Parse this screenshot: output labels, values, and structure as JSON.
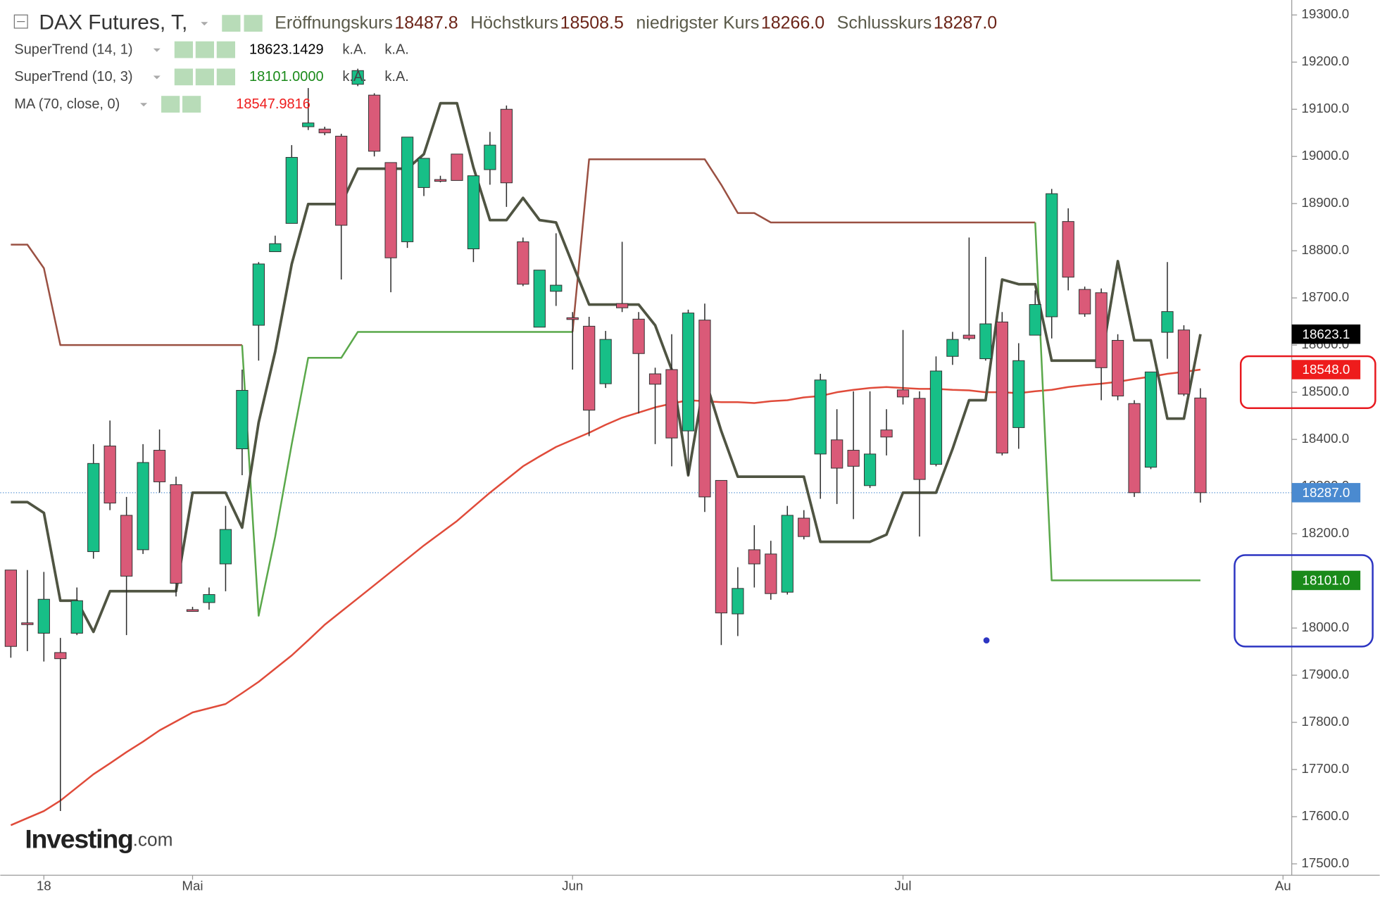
{
  "chart_data": {
    "type": "candlestick",
    "title": "DAX Futures, T,",
    "categories": [
      null,
      null,
      "18",
      null,
      null,
      null,
      null,
      null,
      null,
      null,
      null,
      "Mai",
      null,
      null,
      null,
      null,
      null,
      null,
      null,
      null,
      null,
      null,
      null,
      null,
      null,
      null,
      null,
      null,
      null,
      null,
      null,
      null,
      null,
      null,
      "Jun",
      null,
      null,
      null,
      null,
      null,
      null,
      null,
      null,
      null,
      null,
      null,
      null,
      null,
      null,
      null,
      null,
      null,
      null,
      null,
      "Jul",
      null,
      null,
      null,
      null,
      null,
      null,
      null,
      null,
      null,
      null,
      null,
      null,
      null,
      null,
      null,
      null,
      null,
      null,
      null,
      null,
      null,
      null,
      "Au"
    ],
    "open": [
      18123,
      18011,
      17989,
      17948,
      17989,
      18162,
      18386,
      18239,
      18166,
      18377,
      18304,
      18039,
      18054,
      18136,
      18380,
      18642,
      18798,
      18858,
      19063,
      19058,
      19043,
      19153,
      19130,
      18987,
      18819,
      18934,
      18951,
      19005,
      18804,
      18972,
      19100,
      18819,
      18638,
      18714,
      18658,
      18640,
      18518,
      18688,
      18655,
      18539,
      18548,
      18418,
      18653,
      18313,
      18030,
      18166,
      18157,
      18076,
      18233,
      18369,
      18399,
      18377,
      18302,
      18420,
      18505,
      18487,
      18347,
      18576,
      18621,
      18571,
      18649,
      18425,
      18621,
      18660,
      18862,
      18718,
      18711,
      18610,
      18476,
      18341,
      18627,
      18632,
      18487.8,
      null,
      null,
      null,
      null,
      null
    ],
    "high": [
      18123,
      18123,
      18119,
      17979,
      18086,
      18390,
      18440,
      18278,
      18390,
      18421,
      18321,
      18045,
      18086,
      18259,
      18548,
      18776,
      18832,
      19024,
      19145,
      19063,
      19048,
      19186,
      19134,
      18987,
      19041,
      18996,
      18959,
      19005,
      18959,
      19052,
      19108,
      18828,
      18759,
      18837,
      18670,
      18660,
      18630,
      18819,
      18670,
      18552,
      18623,
      18675,
      18688,
      18313,
      18129,
      18218,
      18185,
      18259,
      18250,
      18539,
      18464,
      18502,
      18502,
      18464,
      18632,
      18502,
      18576,
      18628,
      18828,
      18787,
      18670,
      18604,
      18716,
      18931,
      18890,
      18724,
      18720,
      18623,
      18483,
      18543,
      18776,
      18642,
      18508.5,
      null,
      null,
      null,
      null,
      null
    ],
    "low": [
      17937,
      17951,
      17929,
      17612,
      17985,
      18147,
      18250,
      17985,
      18157,
      18287,
      18067,
      18035,
      18039,
      18078,
      18324,
      18567,
      18798,
      18858,
      19056,
      19045,
      18739,
      19149,
      19000,
      18712,
      18806,
      18916,
      18945,
      18949,
      18776,
      18940,
      18893,
      18725,
      18638,
      18683,
      18548,
      18407,
      18509,
      18670,
      18455,
      18390,
      18343,
      18324,
      18246,
      17964,
      17983,
      18086,
      18060,
      18071,
      18188,
      18274,
      18263,
      18231,
      18297,
      18366,
      18474,
      18194,
      18343,
      18558,
      18610,
      18567,
      18366,
      18380,
      18621,
      18614,
      18716,
      18660,
      18483,
      18483,
      18278,
      18337,
      18571,
      18492,
      18266.0,
      null,
      null,
      null,
      null,
      null
    ],
    "close": [
      17961,
      18011,
      18061,
      17935,
      18058,
      18349,
      18265,
      18110,
      18351,
      18310,
      18095,
      18039,
      18071,
      18209,
      18504,
      18772,
      18815,
      18998,
      19071,
      19050,
      18854,
      19182,
      19011,
      18785,
      19041,
      18996,
      18951,
      18949,
      18959,
      19024,
      18944,
      18729,
      18759,
      18727,
      18658,
      18462,
      18612,
      18679,
      18582,
      18517,
      18403,
      18668,
      18278,
      18032,
      18084,
      18136,
      18073,
      18239,
      18194,
      18526,
      18339,
      18343,
      18369,
      18405,
      18490,
      18315,
      18545,
      18612,
      18614,
      18645,
      18371,
      18567,
      18686,
      18921,
      18744,
      18666,
      18552,
      18492,
      18287,
      18543,
      18671,
      18496,
      18287.0,
      null,
      null,
      null,
      null,
      null
    ],
    "up_color": "#17bf87",
    "down_color": "#da5a78",
    "summary": {
      "labels": [
        "Eröffnungskurs",
        "Höchstkurs",
        "niedrigster Kurs",
        "Schlusskurs"
      ],
      "values": [
        18487.8,
        18508.5,
        18266.0,
        18287.0
      ],
      "value_labels": [
        "18487.8",
        "18508.5",
        "18266.0",
        "18287.0"
      ],
      "close_color": "#4a8ad0"
    },
    "series": [
      {
        "name": "SuperTrend (14, 1)",
        "color": "#4f5442",
        "badge_color": "#000000",
        "legend_value_label": "18623.1429",
        "badge_label": "18623.1",
        "notes": [
          "k.A.",
          "k.A."
        ],
        "values": [
          18267,
          18267,
          18244,
          18058,
          18058,
          17992,
          18078,
          18078,
          18078,
          18078,
          18078,
          18287,
          18287,
          18287,
          18213,
          18436,
          18586,
          18772,
          18899,
          18899,
          18899,
          18974,
          18974,
          18974,
          18974,
          19005,
          19113,
          19113,
          18977,
          18865,
          18865,
          18912,
          18865,
          18860,
          18772,
          18686,
          18686,
          18686,
          18686,
          18642,
          18548,
          18324,
          18530,
          18418,
          18321,
          18321,
          18321,
          18321,
          18321,
          18183,
          18183,
          18183,
          18183,
          18198,
          18287,
          18287,
          18287,
          18380,
          18483,
          18483,
          18739,
          18729,
          18729,
          18567,
          18567,
          18567,
          18567,
          18778,
          18610,
          18610,
          18444,
          18444,
          18623.1429,
          null,
          null,
          null,
          null,
          null
        ]
      },
      {
        "name": "SuperTrend (10, 3)",
        "color": "#1a8a1a",
        "badge_color": "#1a8a1a",
        "legend_value_label": "18101.0000",
        "badge_label": "18101.0",
        "notes": [
          "k.A.",
          "k.A."
        ],
        "values": [
          18813,
          18813,
          18763,
          18600,
          18600,
          18600,
          18600,
          18600,
          18600,
          18600,
          18600,
          18600,
          18600,
          18600,
          18600,
          18026,
          18194,
          18390,
          18573,
          18573,
          18573,
          18628,
          18628,
          18628,
          18628,
          18628,
          18628,
          18628,
          18628,
          18628,
          18628,
          18628,
          18628,
          18628,
          18628,
          18994,
          18994,
          18994,
          18994,
          18994,
          18994,
          18994,
          18994,
          18940,
          18880,
          18880,
          18860,
          18860,
          18860,
          18860,
          18860,
          18860,
          18860,
          18860,
          18860,
          18860,
          18860,
          18860,
          18860,
          18860,
          18860,
          18860,
          18860,
          18101,
          18101,
          18101,
          18101,
          18101,
          18101,
          18101,
          18101,
          18101,
          18101,
          null,
          null,
          null,
          null,
          null
        ],
        "colors": [
          "#9a5042",
          "#9a5042",
          "#9a5042",
          "#9a5042",
          "#9a5042",
          "#9a5042",
          "#9a5042",
          "#9a5042",
          "#9a5042",
          "#9a5042",
          "#9a5042",
          "#9a5042",
          "#9a5042",
          "#9a5042",
          "#9a5042",
          "#5aa84a",
          "#5aa84a",
          "#5aa84a",
          "#5aa84a",
          "#5aa84a",
          "#5aa84a",
          "#5aa84a",
          "#5aa84a",
          "#5aa84a",
          "#5aa84a",
          "#5aa84a",
          "#5aa84a",
          "#5aa84a",
          "#5aa84a",
          "#5aa84a",
          "#5aa84a",
          "#5aa84a",
          "#5aa84a",
          "#5aa84a",
          "#5aa84a",
          "#9a5042",
          "#9a5042",
          "#9a5042",
          "#9a5042",
          "#9a5042",
          "#9a5042",
          "#9a5042",
          "#9a5042",
          "#9a5042",
          "#9a5042",
          "#9a5042",
          "#9a5042",
          "#9a5042",
          "#9a5042",
          "#9a5042",
          "#9a5042",
          "#9a5042",
          "#9a5042",
          "#9a5042",
          "#9a5042",
          "#9a5042",
          "#9a5042",
          "#9a5042",
          "#9a5042",
          "#9a5042",
          "#9a5042",
          "#9a5042",
          "#9a5042",
          "#5aa84a",
          "#5aa84a",
          "#5aa84a",
          "#5aa84a",
          "#5aa84a",
          "#5aa84a",
          "#5aa84a",
          "#5aa84a",
          "#5aa84a",
          "#5aa84a",
          null,
          null,
          null,
          null,
          null
        ]
      },
      {
        "name": "MA (70, close, 0)",
        "color": "#e04b3a",
        "badge_color": "#ee1c1c",
        "legend_value_label": "18547.9816",
        "badge_label": "18548.0",
        "values": [
          17582,
          17597,
          17612,
          17634,
          17662,
          17690,
          17713,
          17737,
          17759,
          17783,
          17802,
          17821,
          17830,
          17839,
          17862,
          17886,
          17914,
          17942,
          17974,
          18007,
          18035,
          18063,
          18091,
          18119,
          18147,
          18175,
          18201,
          18227,
          18257,
          18287,
          18315,
          18343,
          18364,
          18384,
          18399,
          18414,
          18431,
          18446,
          18457,
          18468,
          18476,
          18483,
          18481,
          18479,
          18479,
          18477,
          18481,
          18483,
          18489,
          18492,
          18500,
          18505,
          18509,
          18511,
          18509,
          18507,
          18507,
          18505,
          18504,
          18500,
          18500,
          18498,
          18502,
          18505,
          18511,
          18515,
          18518,
          18522,
          18528,
          18533,
          18539,
          18543,
          18547.9816,
          null,
          null,
          null,
          null,
          null
        ]
      }
    ],
    "ylim": [
      17475.8,
      19331.7
    ],
    "yticks": [
      {
        "value": 17500,
        "label": "17500.0"
      },
      {
        "value": 17600,
        "label": "17600.0"
      },
      {
        "value": 17700,
        "label": "17700.0"
      },
      {
        "value": 17800,
        "label": "17800.0"
      },
      {
        "value": 17900,
        "label": "17900.0"
      },
      {
        "value": 18000,
        "label": "18000.0"
      },
      {
        "value": 18100,
        "label": "18100.0"
      },
      {
        "value": 18200,
        "label": "18200.0"
      },
      {
        "value": 18300,
        "label": "18300.0"
      },
      {
        "value": 18400,
        "label": "18400.0"
      },
      {
        "value": 18500,
        "label": "18500.0"
      },
      {
        "value": 18600,
        "label": "18600.0"
      },
      {
        "value": 18700,
        "label": "18700.0"
      },
      {
        "value": 18800,
        "label": "18800.0"
      },
      {
        "value": 18900,
        "label": "18900.0"
      },
      {
        "value": 19000,
        "label": "19000.0"
      },
      {
        "value": 19100,
        "label": "19100.0"
      },
      {
        "value": 19200,
        "label": "19200.0"
      },
      {
        "value": 19300,
        "label": "19300.0"
      }
    ],
    "watermark": [
      "Investing",
      ".com"
    ]
  }
}
